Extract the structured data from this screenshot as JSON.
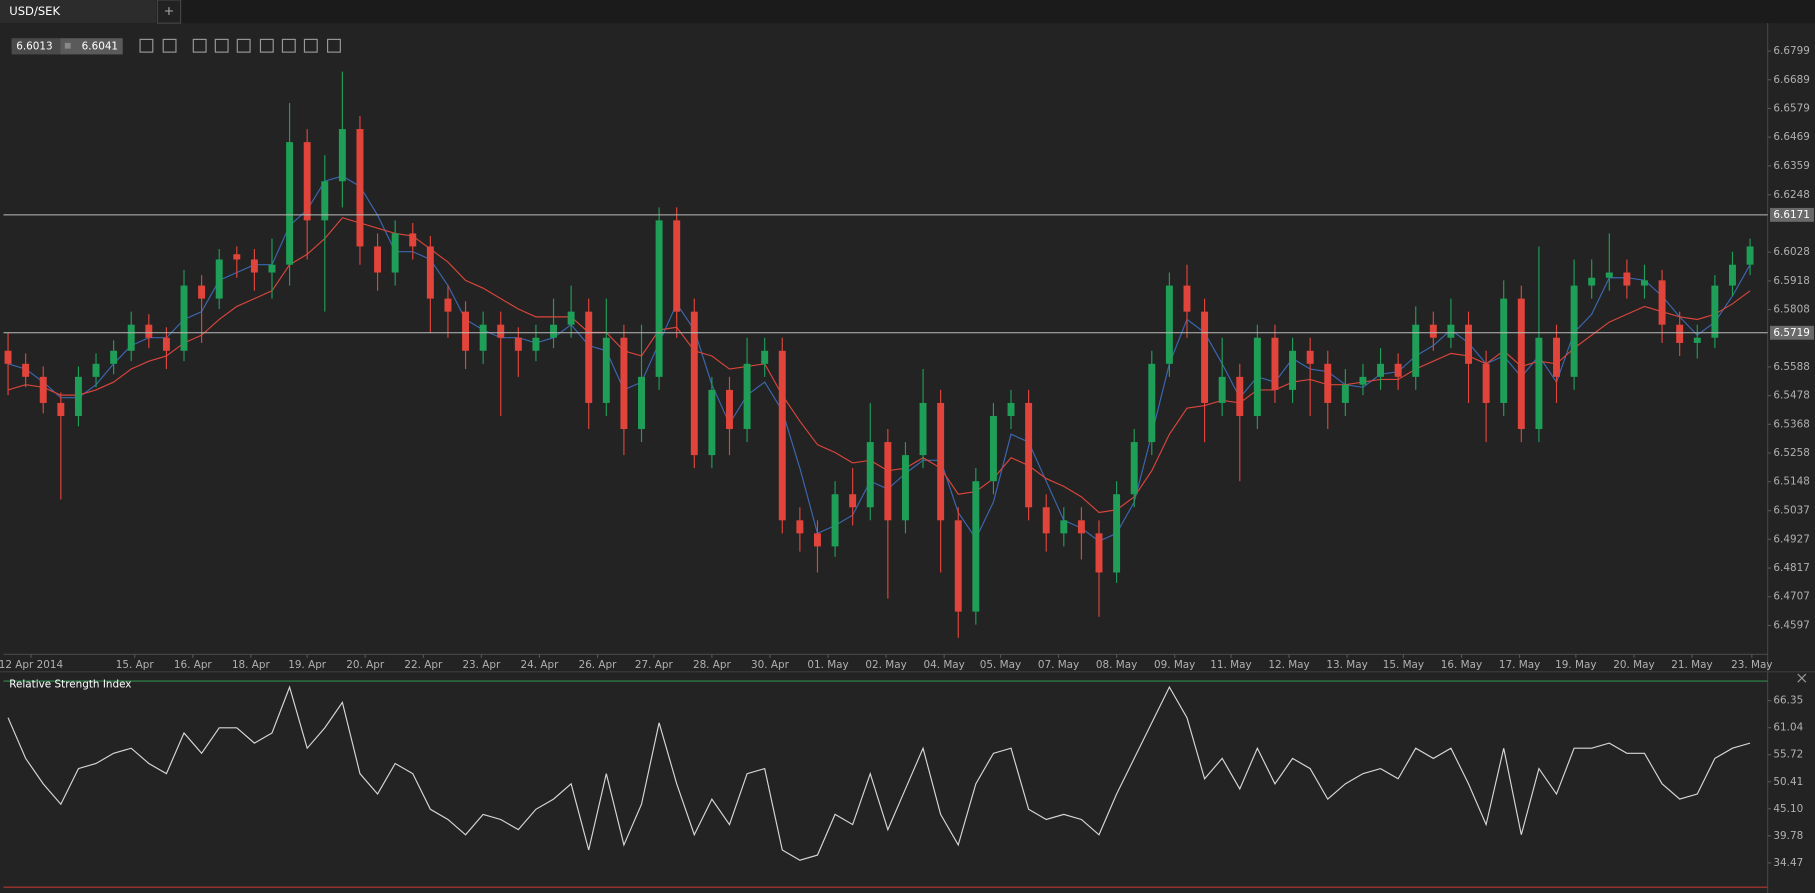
{
  "tab": "USD/SEK",
  "tab_add": "+",
  "quote": {
    "bid": 6.6013,
    "ask": 6.6041
  },
  "chart_data": [
    {
      "type": "candlestick",
      "up_color": "#1e9e57",
      "down_color": "#e0443a",
      "xlim": [
        -0.26,
        100
      ],
      "ylim": [
        6.4486,
        6.6906
      ],
      "yticks": [
        6.6799,
        6.6689,
        6.6579,
        6.6469,
        6.6359,
        6.6248,
        6.6028,
        6.5918,
        6.5808,
        6.5588,
        6.5478,
        6.5368,
        6.5258,
        6.5148,
        6.5037,
        6.4927,
        6.4817,
        6.4707,
        6.4597
      ],
      "hlines": [
        6.6171,
        6.5719
      ],
      "xticks": [
        {
          "value": 1.3,
          "label": "12 Apr 2014"
        },
        {
          "value": 7.2,
          "label": "15. Apr"
        },
        {
          "value": 10.5,
          "label": "16. Apr"
        },
        {
          "value": 13.8,
          "label": "18. Apr"
        },
        {
          "value": 17.0,
          "label": "19. Apr"
        },
        {
          "value": 20.3,
          "label": "20. Apr"
        },
        {
          "value": 23.6,
          "label": "22. Apr"
        },
        {
          "value": 26.9,
          "label": "23. Apr"
        },
        {
          "value": 30.2,
          "label": "24. Apr"
        },
        {
          "value": 33.5,
          "label": "26. Apr"
        },
        {
          "value": 36.7,
          "label": "27. Apr"
        },
        {
          "value": 40.0,
          "label": "28. Apr"
        },
        {
          "value": 43.3,
          "label": "30. Apr"
        },
        {
          "value": 46.6,
          "label": "01. May"
        },
        {
          "value": 49.9,
          "label": "02. May"
        },
        {
          "value": 53.2,
          "label": "04. May"
        },
        {
          "value": 56.4,
          "label": "05. May"
        },
        {
          "value": 59.7,
          "label": "07. May"
        },
        {
          "value": 63.0,
          "label": "08. May"
        },
        {
          "value": 66.3,
          "label": "09. May"
        },
        {
          "value": 69.5,
          "label": "11. May"
        },
        {
          "value": 72.8,
          "label": "12. May"
        },
        {
          "value": 76.1,
          "label": "13. May"
        },
        {
          "value": 79.3,
          "label": "15. May"
        },
        {
          "value": 82.6,
          "label": "16. May"
        },
        {
          "value": 85.9,
          "label": "17. May"
        },
        {
          "value": 89.1,
          "label": "19. May"
        },
        {
          "value": 92.4,
          "label": "20. May"
        },
        {
          "value": 95.7,
          "label": "21. May"
        },
        {
          "value": 99.1,
          "label": "23. May"
        }
      ],
      "ohlc": [
        [
          6.565,
          6.572,
          6.548,
          6.56
        ],
        [
          6.56,
          6.564,
          6.551,
          6.555
        ],
        [
          6.555,
          6.559,
          6.541,
          6.545
        ],
        [
          6.545,
          6.549,
          6.508,
          6.54
        ],
        [
          6.54,
          6.559,
          6.536,
          6.555
        ],
        [
          6.555,
          6.564,
          6.551,
          6.56
        ],
        [
          6.56,
          6.569,
          6.556,
          6.565
        ],
        [
          6.565,
          6.58,
          6.561,
          6.575
        ],
        [
          6.575,
          6.579,
          6.566,
          6.57
        ],
        [
          6.57,
          6.574,
          6.558,
          6.565
        ],
        [
          6.565,
          6.596,
          6.561,
          6.59
        ],
        [
          6.59,
          6.594,
          6.568,
          6.585
        ],
        [
          6.585,
          6.604,
          6.581,
          6.6
        ],
        [
          6.602,
          6.605,
          6.593,
          6.6
        ],
        [
          6.6,
          6.604,
          6.588,
          6.595
        ],
        [
          6.595,
          6.608,
          6.585,
          6.598
        ],
        [
          6.598,
          6.66,
          6.59,
          6.645
        ],
        [
          6.645,
          6.65,
          6.6,
          6.615
        ],
        [
          6.615,
          6.64,
          6.58,
          6.63
        ],
        [
          6.63,
          6.672,
          6.62,
          6.65
        ],
        [
          6.65,
          6.655,
          6.598,
          6.605
        ],
        [
          6.605,
          6.61,
          6.588,
          6.595
        ],
        [
          6.595,
          6.615,
          6.59,
          6.61
        ],
        [
          6.61,
          6.614,
          6.6,
          6.605
        ],
        [
          6.605,
          6.609,
          6.572,
          6.585
        ],
        [
          6.585,
          6.59,
          6.57,
          6.58
        ],
        [
          6.58,
          6.584,
          6.558,
          6.565
        ],
        [
          6.565,
          6.58,
          6.56,
          6.575
        ],
        [
          6.575,
          6.58,
          6.54,
          6.57
        ],
        [
          6.57,
          6.574,
          6.555,
          6.565
        ],
        [
          6.565,
          6.575,
          6.561,
          6.57
        ],
        [
          6.57,
          6.585,
          6.566,
          6.575
        ],
        [
          6.575,
          6.59,
          6.57,
          6.58
        ],
        [
          6.58,
          6.585,
          6.535,
          6.545
        ],
        [
          6.545,
          6.585,
          6.54,
          6.57
        ],
        [
          6.57,
          6.575,
          6.525,
          6.535
        ],
        [
          6.535,
          6.575,
          6.53,
          6.555
        ],
        [
          6.555,
          6.62,
          6.55,
          6.615
        ],
        [
          6.615,
          6.62,
          6.57,
          6.58
        ],
        [
          6.58,
          6.585,
          6.52,
          6.525
        ],
        [
          6.525,
          6.555,
          6.52,
          6.55
        ],
        [
          6.55,
          6.555,
          6.525,
          6.535
        ],
        [
          6.535,
          6.57,
          6.53,
          6.56
        ],
        [
          6.56,
          6.57,
          6.555,
          6.565
        ],
        [
          6.565,
          6.57,
          6.495,
          6.5
        ],
        [
          6.5,
          6.505,
          6.488,
          6.495
        ],
        [
          6.495,
          6.5,
          6.48,
          6.49
        ],
        [
          6.49,
          6.515,
          6.486,
          6.51
        ],
        [
          6.51,
          6.52,
          6.498,
          6.505
        ],
        [
          6.505,
          6.545,
          6.5,
          6.53
        ],
        [
          6.53,
          6.535,
          6.47,
          6.5
        ],
        [
          6.5,
          6.53,
          6.495,
          6.525
        ],
        [
          6.525,
          6.558,
          6.52,
          6.545
        ],
        [
          6.545,
          6.55,
          6.48,
          6.5
        ],
        [
          6.5,
          6.505,
          6.455,
          6.465
        ],
        [
          6.465,
          6.52,
          6.46,
          6.515
        ],
        [
          6.515,
          6.545,
          6.51,
          6.54
        ],
        [
          6.54,
          6.55,
          6.535,
          6.545
        ],
        [
          6.545,
          6.55,
          6.5,
          6.505
        ],
        [
          6.505,
          6.51,
          6.488,
          6.495
        ],
        [
          6.495,
          6.505,
          6.49,
          6.5
        ],
        [
          6.5,
          6.505,
          6.485,
          6.495
        ],
        [
          6.495,
          6.5,
          6.463,
          6.48
        ],
        [
          6.48,
          6.515,
          6.476,
          6.51
        ],
        [
          6.51,
          6.535,
          6.505,
          6.53
        ],
        [
          6.53,
          6.565,
          6.525,
          6.56
        ],
        [
          6.56,
          6.595,
          6.555,
          6.59
        ],
        [
          6.59,
          6.598,
          6.57,
          6.58
        ],
        [
          6.58,
          6.585,
          6.53,
          6.545
        ],
        [
          6.545,
          6.57,
          6.54,
          6.555
        ],
        [
          6.555,
          6.56,
          6.515,
          6.54
        ],
        [
          6.54,
          6.575,
          6.535,
          6.57
        ],
        [
          6.57,
          6.575,
          6.545,
          6.55
        ],
        [
          6.55,
          6.57,
          6.545,
          6.565
        ],
        [
          6.565,
          6.57,
          6.54,
          6.56
        ],
        [
          6.56,
          6.565,
          6.535,
          6.545
        ],
        [
          6.545,
          6.558,
          6.54,
          6.552
        ],
        [
          6.552,
          6.56,
          6.548,
          6.555
        ],
        [
          6.555,
          6.566,
          6.55,
          6.56
        ],
        [
          6.56,
          6.564,
          6.55,
          6.555
        ],
        [
          6.555,
          6.582,
          6.55,
          6.575
        ],
        [
          6.575,
          6.58,
          6.565,
          6.57
        ],
        [
          6.57,
          6.585,
          6.566,
          6.575
        ],
        [
          6.575,
          6.58,
          6.545,
          6.56
        ],
        [
          6.56,
          6.565,
          6.53,
          6.545
        ],
        [
          6.545,
          6.592,
          6.54,
          6.585
        ],
        [
          6.585,
          6.59,
          6.53,
          6.535
        ],
        [
          6.535,
          6.605,
          6.53,
          6.57
        ],
        [
          6.57,
          6.575,
          6.545,
          6.555
        ],
        [
          6.555,
          6.6,
          6.55,
          6.59
        ],
        [
          6.59,
          6.6,
          6.585,
          6.593
        ],
        [
          6.593,
          6.61,
          6.588,
          6.595
        ],
        [
          6.595,
          6.6,
          6.585,
          6.59
        ],
        [
          6.59,
          6.598,
          6.585,
          6.592
        ],
        [
          6.592,
          6.596,
          6.568,
          6.575
        ],
        [
          6.575,
          6.58,
          6.563,
          6.568
        ],
        [
          6.568,
          6.575,
          6.562,
          6.57
        ],
        [
          6.57,
          6.594,
          6.566,
          6.59
        ],
        [
          6.59,
          6.603,
          6.586,
          6.598
        ],
        [
          6.598,
          6.608,
          6.594,
          6.605
        ]
      ],
      "series": [
        {
          "color": "#3a68b0",
          "values": [
            6.56,
            6.558,
            6.553,
            6.547,
            6.547,
            6.552,
            6.56,
            6.567,
            6.57,
            6.57,
            6.577,
            6.58,
            6.592,
            6.595,
            6.598,
            6.598,
            6.613,
            6.619,
            6.63,
            6.632,
            6.628,
            6.617,
            6.603,
            6.603,
            6.6,
            6.59,
            6.577,
            6.573,
            6.57,
            6.57,
            6.568,
            6.57,
            6.575,
            6.567,
            6.565,
            6.55,
            6.553,
            6.568,
            6.583,
            6.573,
            6.552,
            6.537,
            6.548,
            6.553,
            6.542,
            6.52,
            6.495,
            6.498,
            6.502,
            6.515,
            6.512,
            6.518,
            6.523,
            6.523,
            6.503,
            6.493,
            6.507,
            6.533,
            6.53,
            6.515,
            6.5,
            6.497,
            6.492,
            6.495,
            6.507,
            6.533,
            6.56,
            6.577,
            6.572,
            6.56,
            6.547,
            6.555,
            6.553,
            6.562,
            6.558,
            6.557,
            6.552,
            6.551,
            6.556,
            6.557,
            6.563,
            6.567,
            6.573,
            6.568,
            6.56,
            6.563,
            6.555,
            6.563,
            6.553,
            6.572,
            6.579,
            6.593,
            6.593,
            6.592,
            6.586,
            6.578,
            6.571,
            6.576,
            6.586,
            6.598
          ]
        },
        {
          "color": "#d9453b",
          "values": [
            6.55,
            6.552,
            6.551,
            6.548,
            6.548,
            6.55,
            6.553,
            6.558,
            6.561,
            6.563,
            6.568,
            6.571,
            6.577,
            6.582,
            6.585,
            6.588,
            6.598,
            6.602,
            6.608,
            6.616,
            6.614,
            6.612,
            6.61,
            6.609,
            6.604,
            6.599,
            6.592,
            6.589,
            6.585,
            6.581,
            6.578,
            6.578,
            6.578,
            6.572,
            6.572,
            6.565,
            6.563,
            6.573,
            6.574,
            6.565,
            6.563,
            6.558,
            6.559,
            6.56,
            6.548,
            6.538,
            6.529,
            6.526,
            6.522,
            6.523,
            6.519,
            6.52,
            6.524,
            6.52,
            6.51,
            6.511,
            6.516,
            6.524,
            6.521,
            6.516,
            6.513,
            6.509,
            6.503,
            6.504,
            6.509,
            6.519,
            6.533,
            6.543,
            6.544,
            6.546,
            6.545,
            6.55,
            6.55,
            6.553,
            6.554,
            6.552,
            6.552,
            6.553,
            6.554,
            6.554,
            6.558,
            6.561,
            6.564,
            6.563,
            6.56,
            6.565,
            6.559,
            6.561,
            6.56,
            6.566,
            6.571,
            6.576,
            6.579,
            6.582,
            6.58,
            6.578,
            6.577,
            6.579,
            6.583,
            6.588
          ]
        }
      ]
    },
    {
      "type": "line",
      "title": "Relative Strength Index",
      "color": "#d6d6d6",
      "xlim": [
        -0.26,
        100
      ],
      "ylim": [
        29.7,
        70.2
      ],
      "yticks": [
        66.35,
        61.04,
        55.72,
        50.41,
        {
          "value": 45.1,
          "label": "45.10"
        },
        39.78,
        34.47
      ],
      "values": [
        63,
        55,
        50,
        46,
        53,
        54,
        56,
        57,
        54,
        52,
        60,
        56,
        61,
        61,
        58,
        60,
        69,
        57,
        61,
        66,
        52,
        48,
        54,
        52,
        45,
        43,
        40,
        44,
        43,
        41,
        45,
        47,
        50,
        37,
        52,
        38,
        46,
        62,
        50,
        40,
        47,
        42,
        52,
        53,
        37,
        35,
        36,
        44,
        42,
        52,
        41,
        49,
        57,
        44,
        38,
        50,
        56,
        57,
        45,
        43,
        44,
        43,
        40,
        48,
        55,
        62,
        69,
        63,
        51,
        55,
        49,
        57,
        50,
        55,
        53,
        47,
        50,
        52,
        53,
        51,
        57,
        55,
        57,
        50,
        42,
        57,
        40,
        53,
        48,
        57,
        57,
        58,
        56,
        56,
        50,
        47,
        48,
        55,
        57,
        58
      ]
    }
  ]
}
